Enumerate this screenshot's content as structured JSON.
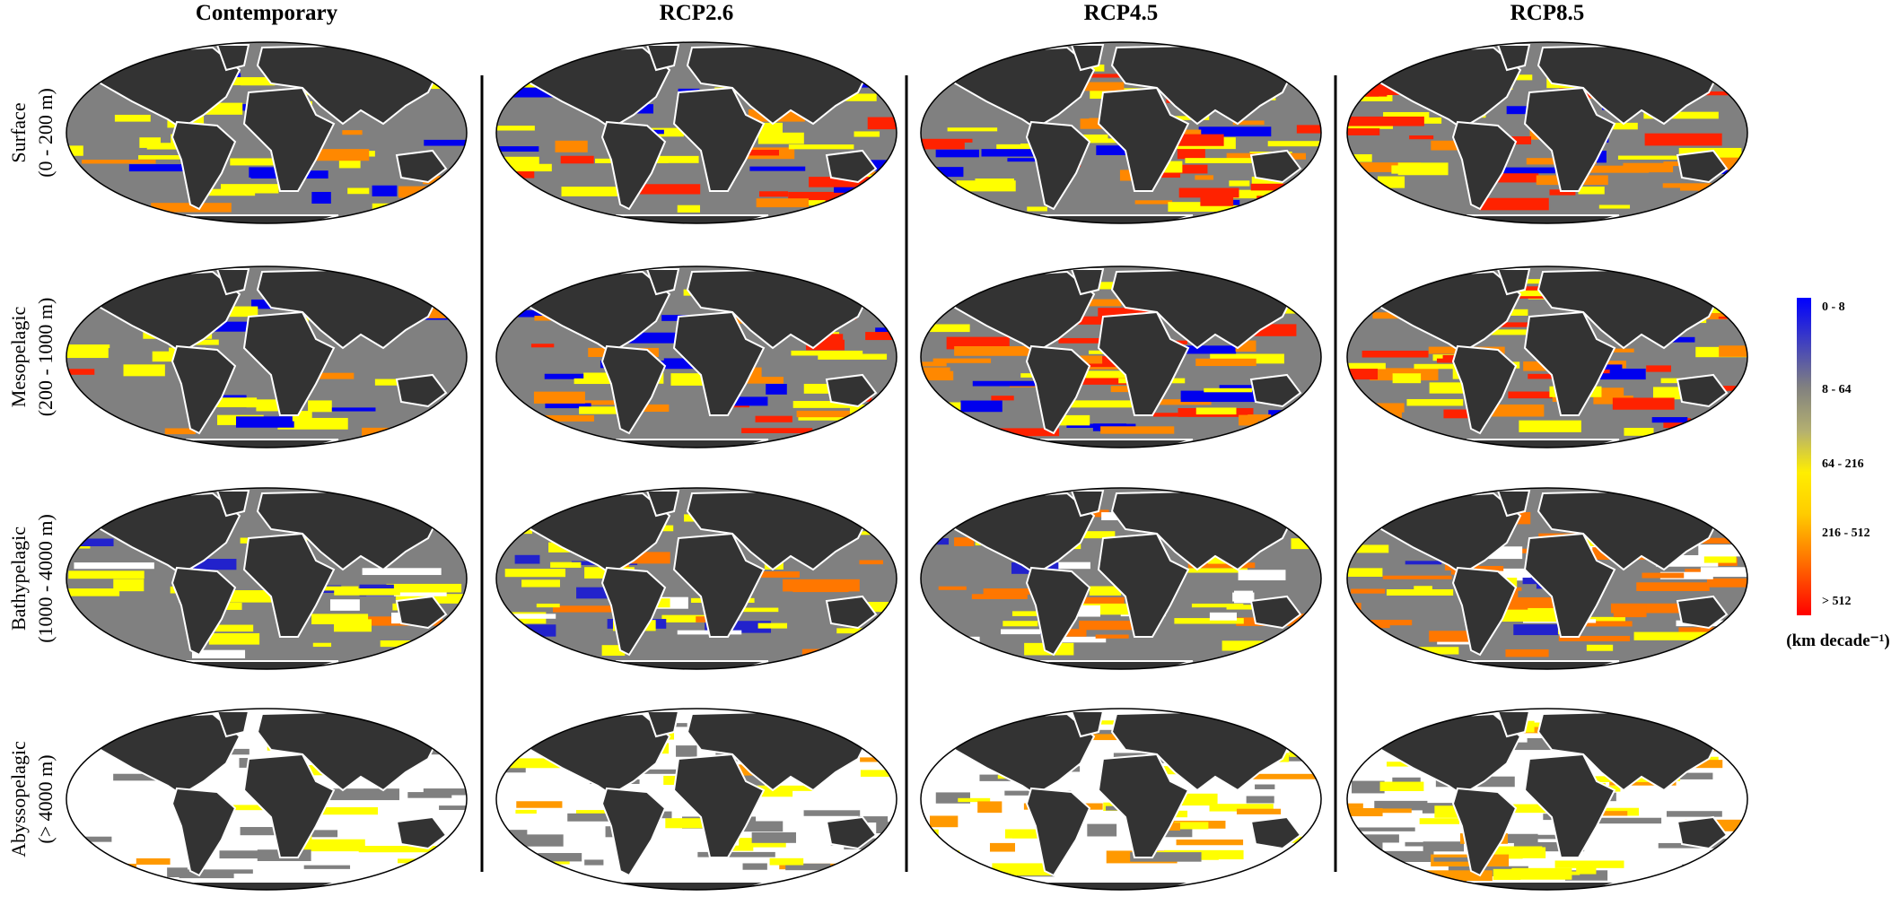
{
  "column_titles": [
    "Contemporary",
    "RCP2.6",
    "RCP4.5",
    "RCP8.5"
  ],
  "row_labels": [
    {
      "lines": [
        "Surface",
        "(0 - 200 m)"
      ]
    },
    {
      "lines": [
        "Mesopelagic",
        "(200 - 1000 m)"
      ]
    },
    {
      "lines": [
        "Bathypelagic",
        "(1000 - 4000 m)"
      ]
    },
    {
      "lines": [
        "Abyssopelagic",
        "(> 4000 m)"
      ]
    }
  ],
  "legend": {
    "labels": [
      "0 - 8",
      "8 - 64",
      "64 - 216",
      "216 - 512",
      "> 512"
    ],
    "unit": "(km decade⁻¹)"
  }
}
